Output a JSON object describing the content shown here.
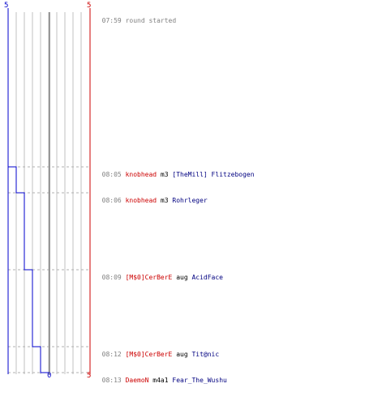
{
  "axis": {
    "left_top_label": "5",
    "right_top_label": "5",
    "bottom_zero_label": "0",
    "bottom_right_label": "5"
  },
  "colors": {
    "left_line": "#0000cc",
    "right_line": "#cc0000",
    "grid": "#c0c0c0",
    "center": "#808080",
    "guide": "#b0b0b0"
  },
  "header": {
    "time": "07:59",
    "text": "round started"
  },
  "events": [
    {
      "time": "08:05",
      "killer": "knobhead",
      "weapon": "m3",
      "victim": "[TheMill] Flitzebogen",
      "score": 4
    },
    {
      "time": "08:06",
      "killer": "knobhead",
      "weapon": "m3",
      "victim": "Rohrleger",
      "score": 3
    },
    {
      "time": "08:09",
      "killer": "[M$0]CerBerE",
      "weapon": "aug",
      "victim": "AcidFace",
      "score": 2
    },
    {
      "time": "08:12",
      "killer": "[M$0]CerBerE",
      "weapon": "aug",
      "victim": "Tit@nic",
      "score": 1
    },
    {
      "time": "08:13",
      "killer": "DaemoN",
      "weapon": "m4a1",
      "victim": "Fear_The_Wushu",
      "score": 0
    }
  ]
}
